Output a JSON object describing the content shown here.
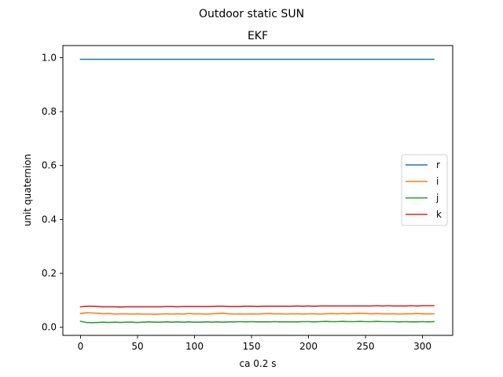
{
  "chart_data": {
    "type": "line",
    "suptitle": "Outdoor static SUN",
    "title": "EKF",
    "xlabel": "ca 0.2 s",
    "ylabel": "unit quaternion",
    "xlim": [
      -15.5,
      326.5
    ],
    "ylim": [
      -0.03,
      1.045
    ],
    "xticks": [
      0,
      50,
      100,
      150,
      200,
      250,
      300
    ],
    "xtick_labels": [
      "0",
      "50",
      "100",
      "150",
      "200",
      "250",
      "300"
    ],
    "yticks": [
      0.0,
      0.2,
      0.4,
      0.6,
      0.8,
      1.0
    ],
    "ytick_labels": [
      "0.0",
      "0.2",
      "0.4",
      "0.6",
      "0.8",
      "1.0"
    ],
    "grid": false,
    "legend_position": "center-right",
    "x": [
      0,
      5,
      10,
      15,
      20,
      25,
      30,
      35,
      40,
      45,
      50,
      55,
      60,
      65,
      70,
      75,
      80,
      85,
      90,
      95,
      100,
      105,
      110,
      115,
      120,
      125,
      130,
      135,
      140,
      145,
      150,
      155,
      160,
      165,
      170,
      175,
      180,
      185,
      190,
      195,
      200,
      205,
      210,
      215,
      220,
      225,
      230,
      235,
      240,
      245,
      250,
      255,
      260,
      265,
      270,
      275,
      280,
      285,
      290,
      295,
      300,
      305,
      310
    ],
    "series": [
      {
        "name": "r",
        "color": "#1f77b4",
        "values": [
          0.994,
          0.994,
          0.994,
          0.994,
          0.994,
          0.994,
          0.994,
          0.994,
          0.994,
          0.994,
          0.994,
          0.994,
          0.994,
          0.994,
          0.994,
          0.994,
          0.994,
          0.994,
          0.994,
          0.994,
          0.994,
          0.994,
          0.994,
          0.994,
          0.994,
          0.994,
          0.994,
          0.994,
          0.994,
          0.994,
          0.994,
          0.994,
          0.994,
          0.994,
          0.994,
          0.994,
          0.994,
          0.994,
          0.994,
          0.994,
          0.994,
          0.994,
          0.994,
          0.994,
          0.994,
          0.994,
          0.994,
          0.994,
          0.994,
          0.994,
          0.994,
          0.994,
          0.994,
          0.994,
          0.994,
          0.994,
          0.994,
          0.994,
          0.994,
          0.994,
          0.994,
          0.994,
          0.994
        ]
      },
      {
        "name": "i",
        "color": "#ff7f0e",
        "values": [
          0.051,
          0.054,
          0.053,
          0.052,
          0.05,
          0.051,
          0.049,
          0.05,
          0.05,
          0.049,
          0.05,
          0.049,
          0.049,
          0.048,
          0.049,
          0.05,
          0.049,
          0.05,
          0.049,
          0.051,
          0.05,
          0.05,
          0.049,
          0.05,
          0.051,
          0.052,
          0.05,
          0.049,
          0.05,
          0.049,
          0.05,
          0.049,
          0.05,
          0.051,
          0.05,
          0.05,
          0.049,
          0.05,
          0.05,
          0.049,
          0.05,
          0.05,
          0.049,
          0.05,
          0.051,
          0.05,
          0.051,
          0.05,
          0.051,
          0.052,
          0.051,
          0.05,
          0.051,
          0.05,
          0.05,
          0.05,
          0.049,
          0.05,
          0.05,
          0.051,
          0.05,
          0.05,
          0.05
        ]
      },
      {
        "name": "j",
        "color": "#2ca02c",
        "values": [
          0.022,
          0.018,
          0.017,
          0.018,
          0.019,
          0.018,
          0.019,
          0.018,
          0.019,
          0.019,
          0.018,
          0.019,
          0.02,
          0.019,
          0.019,
          0.02,
          0.019,
          0.02,
          0.019,
          0.02,
          0.019,
          0.019,
          0.02,
          0.019,
          0.02,
          0.019,
          0.02,
          0.02,
          0.021,
          0.02,
          0.021,
          0.02,
          0.02,
          0.02,
          0.021,
          0.02,
          0.02,
          0.02,
          0.02,
          0.021,
          0.021,
          0.02,
          0.021,
          0.022,
          0.021,
          0.021,
          0.022,
          0.021,
          0.021,
          0.022,
          0.021,
          0.021,
          0.022,
          0.021,
          0.021,
          0.021,
          0.02,
          0.021,
          0.02,
          0.02,
          0.021,
          0.02,
          0.021
        ]
      },
      {
        "name": "k",
        "color": "#d62728",
        "values": [
          0.076,
          0.078,
          0.078,
          0.077,
          0.076,
          0.076,
          0.076,
          0.075,
          0.076,
          0.076,
          0.076,
          0.076,
          0.076,
          0.076,
          0.076,
          0.077,
          0.077,
          0.076,
          0.077,
          0.077,
          0.077,
          0.077,
          0.077,
          0.077,
          0.078,
          0.078,
          0.077,
          0.077,
          0.077,
          0.078,
          0.078,
          0.077,
          0.078,
          0.078,
          0.078,
          0.078,
          0.078,
          0.078,
          0.079,
          0.078,
          0.079,
          0.078,
          0.079,
          0.079,
          0.079,
          0.079,
          0.079,
          0.079,
          0.079,
          0.079,
          0.079,
          0.079,
          0.08,
          0.079,
          0.08,
          0.079,
          0.079,
          0.079,
          0.08,
          0.079,
          0.08,
          0.08,
          0.08
        ]
      }
    ]
  }
}
